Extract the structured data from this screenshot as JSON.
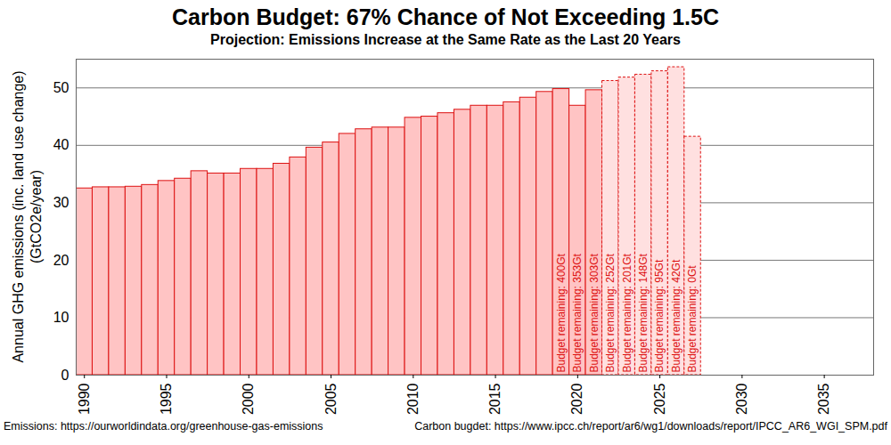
{
  "chart_data": {
    "type": "bar",
    "title": "Carbon Budget: 67% Chance of Not Exceeding 1.5C",
    "subtitle": "Projection: Emissions Increase at the Same Rate as the Last 20 Years",
    "ylabel": "Annual GHG emissions (inc. land use change)\n(GtCO2e/year)",
    "x": [
      1990,
      1991,
      1992,
      1993,
      1994,
      1995,
      1996,
      1997,
      1998,
      1999,
      2000,
      2001,
      2002,
      2003,
      2004,
      2005,
      2006,
      2007,
      2008,
      2009,
      2010,
      2011,
      2012,
      2013,
      2014,
      2015,
      2016,
      2017,
      2018,
      2019,
      2020,
      2021,
      2022,
      2023,
      2024,
      2025,
      2026,
      2027
    ],
    "series": [
      {
        "color": "#ffc4c4",
        "line_style": "solid",
        "values": [
          32.5,
          32.7,
          32.7,
          32.8,
          33.1,
          33.8,
          34.2,
          35.5,
          35.1,
          35.1,
          35.9,
          35.9,
          36.8,
          37.9,
          39.6,
          40.5,
          42.0,
          42.8,
          43.1,
          43.1,
          44.8,
          45.0,
          45.6,
          46.2,
          46.9,
          46.9,
          47.5,
          48.3,
          49.3,
          49.8,
          46.9,
          49.6,
          null,
          null,
          null,
          null,
          null,
          null
        ]
      },
      {
        "color": "#ffe0e0",
        "line_style": "dashed",
        "values": [
          null,
          null,
          null,
          null,
          null,
          null,
          null,
          null,
          null,
          null,
          null,
          null,
          null,
          null,
          null,
          null,
          null,
          null,
          null,
          null,
          null,
          null,
          null,
          null,
          null,
          null,
          null,
          null,
          null,
          null,
          null,
          null,
          51.2,
          51.8,
          52.3,
          52.9,
          53.6,
          41.5
        ]
      }
    ],
    "annotations": [
      {
        "x": 2019,
        "text": "Budget remaining: 400Gt"
      },
      {
        "x": 2020,
        "text": "Budget remaining: 353Gt"
      },
      {
        "x": 2021,
        "text": "Budget remaining: 303Gt"
      },
      {
        "x": 2022,
        "text": "Budget remaining: 252Gt"
      },
      {
        "x": 2023,
        "text": "Budget remaining: 201Gt"
      },
      {
        "x": 2024,
        "text": "Budget remaining: 148Gt"
      },
      {
        "x": 2025,
        "text": "Budget remaining: 95Gt"
      },
      {
        "x": 2026,
        "text": "Budget remaining: 42Gt"
      },
      {
        "x": 2027,
        "text": "Budget remaining: 0Gt"
      }
    ],
    "sources": [
      "Emissions: https://ourworldindata.org/greenhouse-gas-emissions",
      "Carbon bugdet: https://www.ipcc.ch/report/ar6/wg1/downloads/report/IPCC_AR6_WGI_SPM.pdf"
    ],
    "xlim": [
      1989.5,
      2038
    ],
    "xticks": [
      1990,
      1995,
      2000,
      2005,
      2010,
      2015,
      2020,
      2025,
      2030,
      2035
    ],
    "ylim": [
      0,
      55
    ],
    "yticks": [
      0,
      10,
      20,
      30,
      40,
      50
    ],
    "grid": true
  }
}
